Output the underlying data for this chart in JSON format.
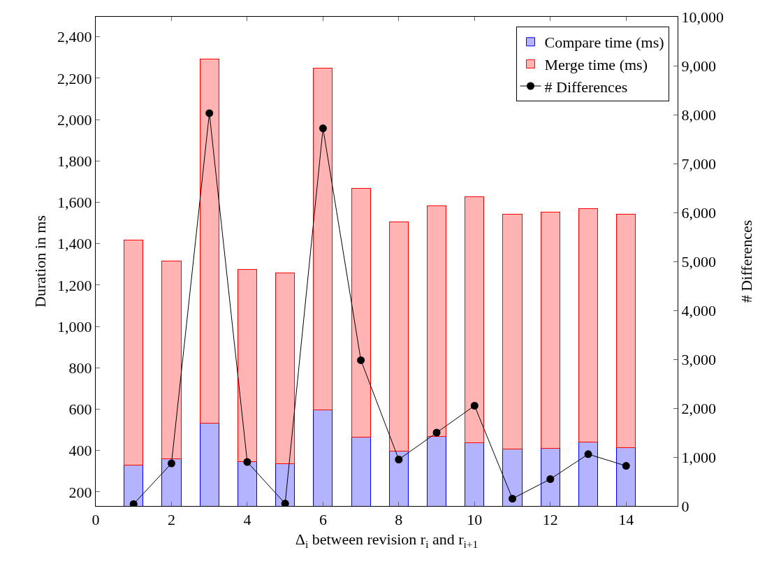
{
  "chart_data": {
    "type": "bar",
    "stacked": true,
    "xlabel": "Δ$_{i}$ between revision r$_{i}$ and r$_{i+1}$",
    "ylabel": "Duration in ms",
    "y2label": "# Differences",
    "x": [
      1,
      2,
      3,
      4,
      5,
      6,
      7,
      8,
      9,
      10,
      11,
      12,
      13,
      14
    ],
    "series": [
      {
        "name": "Compare time (ms)",
        "color": "#b3b3ff",
        "values": [
          328,
          360,
          532,
          346,
          337,
          595,
          465,
          397,
          469,
          438,
          407,
          411,
          442,
          414
        ]
      },
      {
        "name": "Merge time (ms)",
        "color": "#ffb3b3",
        "values": [
          1089,
          956,
          1762,
          929,
          923,
          1653,
          1202,
          1110,
          1114,
          1190,
          1134,
          1143,
          1128,
          1129
        ]
      },
      {
        "name": "# Differences",
        "type": "line",
        "axis": "y2",
        "color": "#000000",
        "marker": "circle",
        "line_style": "solid",
        "values": [
          40,
          870,
          8030,
          900,
          50,
          7720,
          2980,
          950,
          1500,
          2050,
          150,
          550,
          1060,
          820
        ]
      }
    ],
    "xlim": [
      0,
      15.36
    ],
    "xticks": [
      0,
      2,
      4,
      6,
      8,
      10,
      12,
      14
    ],
    "ylim": [
      132,
      2497
    ],
    "yticks": [
      {
        "value": 200,
        "label": "200"
      },
      {
        "value": 400,
        "label": "400"
      },
      {
        "value": 600,
        "label": "600"
      },
      {
        "value": 800,
        "label": "800"
      },
      {
        "value": 1000,
        "label": "1,000"
      },
      {
        "value": 1200,
        "label": "1,200"
      },
      {
        "value": 1400,
        "label": "1,400"
      },
      {
        "value": 1600,
        "label": "1,600"
      },
      {
        "value": 1800,
        "label": "1,800"
      },
      {
        "value": 2000,
        "label": "2,000"
      },
      {
        "value": 2200,
        "label": "2,200"
      },
      {
        "value": 2400,
        "label": "2,400"
      }
    ],
    "y2lim": [
      0,
      10000
    ],
    "y2ticks": [
      0,
      {
        "value": 1000,
        "label": "1,000"
      },
      {
        "value": 2000,
        "label": "2,000"
      },
      {
        "value": 3000,
        "label": "3,000"
      },
      {
        "value": 4000,
        "label": "4,000"
      },
      {
        "value": 5000,
        "label": "5,000"
      },
      {
        "value": 6000,
        "label": "6,000"
      },
      {
        "value": 7000,
        "label": "7,000"
      },
      {
        "value": 8000,
        "label": "8,000"
      },
      {
        "value": 9000,
        "label": "9,000"
      },
      {
        "value": 10000,
        "label": "10,000"
      }
    ],
    "legend": "top right"
  }
}
